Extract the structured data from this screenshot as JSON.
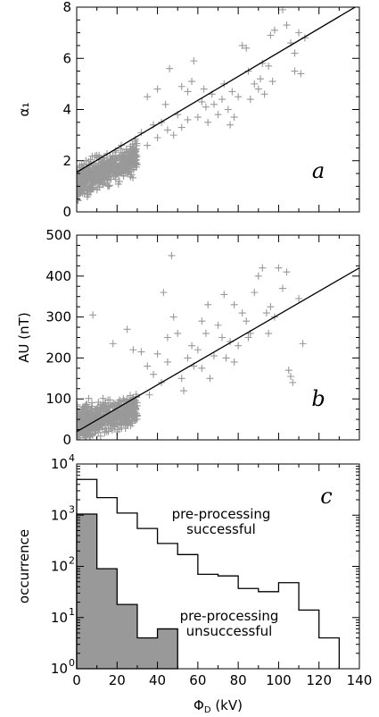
{
  "chart_data": [
    {
      "type": "scatter",
      "panel_label": "a",
      "ylabel": "α₁",
      "xlim": [
        0,
        140
      ],
      "ylim": [
        0,
        8
      ],
      "yticks": [
        0,
        2,
        4,
        6,
        8
      ],
      "marker_color": "#999999",
      "fit_line": {
        "x": [
          0,
          140
        ],
        "y": [
          1.55,
          8.1
        ]
      },
      "cluster": {
        "x_range": [
          0,
          30
        ],
        "y_center": 2.0,
        "count": 600
      },
      "points": [
        [
          32,
          3.1
        ],
        [
          35,
          2.6
        ],
        [
          38,
          3.4
        ],
        [
          40,
          2.9
        ],
        [
          42,
          3.5
        ],
        [
          44,
          4.2
        ],
        [
          45,
          3.2
        ],
        [
          48,
          3.0
        ],
        [
          50,
          3.8
        ],
        [
          52,
          4.9
        ],
        [
          55,
          3.6
        ],
        [
          57,
          5.1
        ],
        [
          58,
          5.9
        ],
        [
          60,
          3.7
        ],
        [
          62,
          4.3
        ],
        [
          64,
          4.1
        ],
        [
          65,
          3.5
        ],
        [
          67,
          4.6
        ],
        [
          70,
          3.8
        ],
        [
          72,
          4.4
        ],
        [
          73,
          5.0
        ],
        [
          75,
          4.0
        ],
        [
          77,
          4.7
        ],
        [
          78,
          3.7
        ],
        [
          80,
          4.5
        ],
        [
          82,
          6.5
        ],
        [
          84,
          6.4
        ],
        [
          85,
          5.5
        ],
        [
          86,
          4.4
        ],
        [
          88,
          5.0
        ],
        [
          90,
          4.8
        ],
        [
          91,
          5.2
        ],
        [
          93,
          4.6
        ],
        [
          95,
          5.7
        ],
        [
          96,
          6.9
        ],
        [
          98,
          7.1
        ],
        [
          100,
          8.0
        ],
        [
          102,
          7.9
        ],
        [
          104,
          7.3
        ],
        [
          106,
          6.6
        ],
        [
          108,
          6.2
        ],
        [
          110,
          7.0
        ],
        [
          111,
          5.4
        ],
        [
          113,
          6.8
        ],
        [
          108,
          5.5
        ],
        [
          35,
          4.5
        ],
        [
          46,
          5.6
        ],
        [
          40,
          4.8
        ],
        [
          55,
          4.7
        ],
        [
          68,
          4.2
        ],
        [
          92,
          5.8
        ],
        [
          76,
          3.4
        ],
        [
          63,
          4.8
        ],
        [
          52,
          3.3
        ],
        [
          97,
          5.1
        ]
      ]
    },
    {
      "type": "scatter",
      "panel_label": "b",
      "ylabel": "AU (nT)",
      "xlim": [
        0,
        140
      ],
      "ylim": [
        0,
        500
      ],
      "yticks": [
        0,
        100,
        200,
        300,
        400,
        500
      ],
      "marker_color": "#999999",
      "fit_line": {
        "x": [
          0,
          140
        ],
        "y": [
          20,
          420
        ]
      },
      "cluster": {
        "x_range": [
          0,
          30
        ],
        "y_center": 70,
        "count": 600
      },
      "points": [
        [
          8,
          305
        ],
        [
          18,
          235
        ],
        [
          25,
          270
        ],
        [
          28,
          220
        ],
        [
          32,
          215
        ],
        [
          35,
          180
        ],
        [
          38,
          160
        ],
        [
          40,
          210
        ],
        [
          42,
          140
        ],
        [
          45,
          250
        ],
        [
          47,
          450
        ],
        [
          48,
          300
        ],
        [
          50,
          260
        ],
        [
          52,
          150
        ],
        [
          55,
          200
        ],
        [
          57,
          230
        ],
        [
          60,
          220
        ],
        [
          62,
          175
        ],
        [
          64,
          260
        ],
        [
          65,
          330
        ],
        [
          68,
          205
        ],
        [
          70,
          280
        ],
        [
          72,
          250
        ],
        [
          74,
          200
        ],
        [
          76,
          240
        ],
        [
          78,
          190
        ],
        [
          80,
          230
        ],
        [
          82,
          310
        ],
        [
          84,
          290
        ],
        [
          86,
          260
        ],
        [
          88,
          360
        ],
        [
          90,
          400
        ],
        [
          92,
          420
        ],
        [
          94,
          310
        ],
        [
          96,
          325
        ],
        [
          98,
          300
        ],
        [
          100,
          420
        ],
        [
          102,
          370
        ],
        [
          104,
          410
        ],
        [
          106,
          155
        ],
        [
          107,
          140
        ],
        [
          110,
          345
        ],
        [
          112,
          235
        ],
        [
          105,
          170
        ],
        [
          73,
          355
        ],
        [
          43,
          360
        ],
        [
          58,
          180
        ],
        [
          66,
          150
        ],
        [
          53,
          120
        ],
        [
          36,
          110
        ],
        [
          85,
          250
        ],
        [
          95,
          260
        ],
        [
          78,
          330
        ],
        [
          62,
          290
        ],
        [
          45,
          190
        ]
      ]
    },
    {
      "type": "step",
      "panel_label": "c",
      "ylabel": "occurrence",
      "xlabel": "ΦD (kV)",
      "xlim": [
        0,
        140
      ],
      "xticks": [
        0,
        20,
        40,
        60,
        80,
        100,
        120,
        140
      ],
      "ylim": [
        1,
        10000
      ],
      "yscale": "log",
      "yticks_exponents": [
        0,
        1,
        2,
        3,
        4
      ],
      "bin_width": 10,
      "series": [
        {
          "bin_edges": [
            0,
            10,
            20,
            30,
            40,
            50,
            60,
            70,
            80,
            90,
            100,
            110,
            120,
            130
          ],
          "counts": [
            5000,
            2200,
            1100,
            550,
            280,
            170,
            70,
            65,
            37,
            32,
            48,
            14,
            4
          ],
          "annotation": [
            "pre-processing",
            "successful"
          ],
          "fill": "none"
        },
        {
          "bin_edges": [
            0,
            10,
            20,
            30,
            40,
            50
          ],
          "counts": [
            1050,
            90,
            18,
            4,
            6
          ],
          "annotation": [
            "pre-processing",
            "unsuccessful"
          ],
          "fill": "#999999"
        }
      ]
    }
  ]
}
